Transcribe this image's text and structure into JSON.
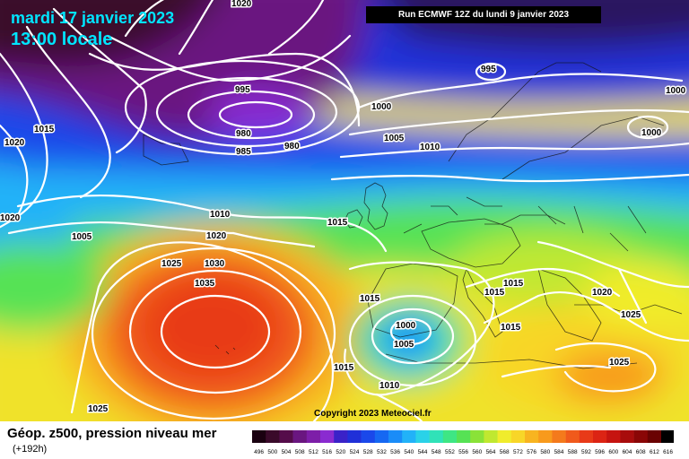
{
  "header": {
    "date": "mardi 17 janvier 2023",
    "time": "13:00 locale",
    "run": "Run ECMWF 12Z du lundi 9 janvier 2023"
  },
  "copyright": "Copyright 2023 Meteociel.fr",
  "legend": {
    "title": "Géop. z500, pression niveau mer",
    "subtitle": "(+192h)",
    "scale_labels": [
      "496",
      "500",
      "504",
      "508",
      "512",
      "516",
      "520",
      "524",
      "528",
      "532",
      "536",
      "540",
      "544",
      "548",
      "552",
      "556",
      "560",
      "564",
      "568",
      "572",
      "576",
      "580",
      "584",
      "588",
      "592",
      "596",
      "600",
      "604",
      "608",
      "612",
      "616"
    ],
    "scale_colors": [
      "#1a0010",
      "#3a0a2a",
      "#550c4a",
      "#6a1680",
      "#7d1ea8",
      "#8a2bd0",
      "#3a22c8",
      "#2030d8",
      "#1a48ea",
      "#1668f2",
      "#1a8cf8",
      "#22b2f8",
      "#2ad2e8",
      "#30e2b8",
      "#3ee684",
      "#56e254",
      "#8ae238",
      "#c0e830",
      "#f0ec2c",
      "#f8d628",
      "#f8b420",
      "#f89a1c",
      "#f47a1c",
      "#f05a1c",
      "#e83a18",
      "#dc2414",
      "#c61410",
      "#a80c0c",
      "#8a0606",
      "#6a0202",
      "#000000"
    ]
  },
  "isobar_labels": [
    {
      "text": "1020",
      "pos": "top-left"
    },
    {
      "text": "995",
      "pos": "low-iceland"
    },
    {
      "text": "980",
      "pos": "low-iceland"
    },
    {
      "text": "980",
      "pos": "low-iceland"
    },
    {
      "text": "985",
      "pos": "low-iceland"
    },
    {
      "text": "1015",
      "pos": "greenland"
    },
    {
      "text": "1020",
      "pos": "west"
    },
    {
      "text": "1000",
      "pos": "north-atlantic"
    },
    {
      "text": "995",
      "pos": "norway-sea"
    },
    {
      "text": "1000",
      "pos": "scandinavia"
    },
    {
      "text": "1000",
      "pos": "russia"
    },
    {
      "text": "1005",
      "pos": "north-sea"
    },
    {
      "text": "1010",
      "pos": "north-sea"
    },
    {
      "text": "1020",
      "pos": "west-atlantic"
    },
    {
      "text": "1005",
      "pos": "atlantic"
    },
    {
      "text": "1010",
      "pos": "atlantic"
    },
    {
      "text": "1020",
      "pos": "azores"
    },
    {
      "text": "1025",
      "pos": "azores"
    },
    {
      "text": "1030",
      "pos": "azores"
    },
    {
      "text": "1035",
      "pos": "azores"
    },
    {
      "text": "1015",
      "pos": "ireland"
    },
    {
      "text": "1015",
      "pos": "biscay"
    },
    {
      "text": "1000",
      "pos": "iberia"
    },
    {
      "text": "1005",
      "pos": "iberia"
    },
    {
      "text": "1015",
      "pos": "portugal"
    },
    {
      "text": "1010",
      "pos": "morocco"
    },
    {
      "text": "1015",
      "pos": "alps"
    },
    {
      "text": "1015",
      "pos": "italy"
    },
    {
      "text": "1015",
      "pos": "italy-south"
    },
    {
      "text": "1020",
      "pos": "balkans"
    },
    {
      "text": "1025",
      "pos": "greece"
    },
    {
      "text": "1025",
      "pos": "east-med"
    },
    {
      "text": "1025",
      "pos": "bottom-left"
    }
  ]
}
